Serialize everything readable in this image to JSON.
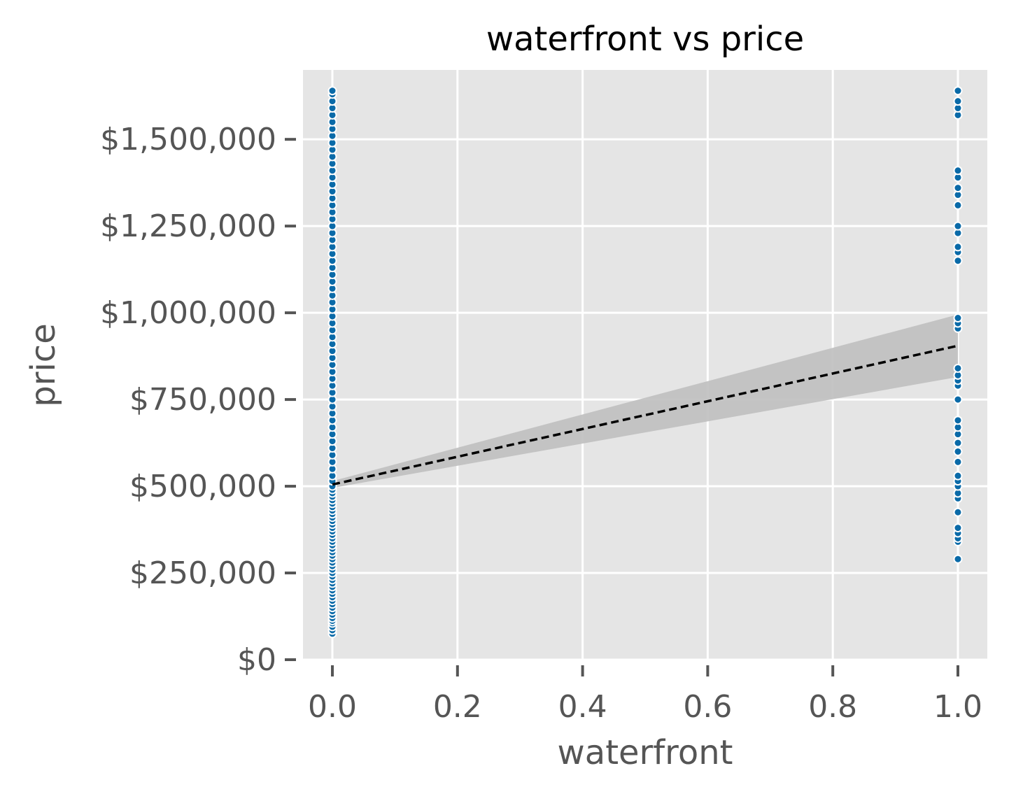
{
  "chart_data": {
    "type": "scatter",
    "title": "waterfront vs price",
    "xlabel": "waterfront",
    "ylabel": "price",
    "xlim": [
      -0.047,
      1.047
    ],
    "ylim": [
      0,
      1700000
    ],
    "xticks": [
      0.0,
      0.2,
      0.4,
      0.6,
      0.8,
      1.0
    ],
    "xtick_labels": [
      "0.0",
      "0.2",
      "0.4",
      "0.6",
      "0.8",
      "1.0"
    ],
    "yticks": [
      0,
      250000,
      500000,
      750000,
      1000000,
      1250000,
      1500000
    ],
    "ytick_labels": [
      "$0",
      "$250,000",
      "$500,000",
      "$750,000",
      "$1,000,000",
      "$1,250,000",
      "$1,500,000"
    ],
    "grid": true,
    "background": "#e5e5e5",
    "point_color": "#0a6aa8",
    "point_edge_color": "#ffffff",
    "series": [
      {
        "x_value": 0,
        "y": [
          75000,
          85000,
          95000,
          105000,
          112000,
          120000,
          130000,
          140000,
          150000,
          160000,
          170000,
          180000,
          190000,
          200000,
          210000,
          220000,
          230000,
          240000,
          250000,
          260000,
          270000,
          280000,
          290000,
          300000,
          310000,
          320000,
          330000,
          340000,
          350000,
          360000,
          370000,
          380000,
          390000,
          400000,
          410000,
          420000,
          430000,
          440000,
          450000,
          460000,
          470000,
          480000,
          490000,
          500000,
          515000,
          530000,
          550000,
          570000,
          590000,
          610000,
          630000,
          650000,
          670000,
          690000,
          710000,
          730000,
          750000,
          770000,
          790000,
          810000,
          830000,
          850000,
          870000,
          890000,
          910000,
          930000,
          950000,
          970000,
          990000,
          1010000,
          1030000,
          1050000,
          1070000,
          1090000,
          1110000,
          1130000,
          1150000,
          1170000,
          1190000,
          1210000,
          1230000,
          1250000,
          1270000,
          1290000,
          1310000,
          1330000,
          1350000,
          1370000,
          1390000,
          1410000,
          1430000,
          1450000,
          1470000,
          1490000,
          1510000,
          1530000,
          1550000,
          1570000,
          1590000,
          1610000,
          1630000,
          1640000
        ]
      },
      {
        "x_value": 1,
        "y": [
          290000,
          340000,
          350000,
          365000,
          380000,
          425000,
          465000,
          480000,
          500000,
          515000,
          530000,
          570000,
          600000,
          625000,
          650000,
          670000,
          690000,
          750000,
          790000,
          805000,
          820000,
          840000,
          955000,
          970000,
          985000,
          1150000,
          1175000,
          1190000,
          1230000,
          1250000,
          1310000,
          1340000,
          1360000,
          1390000,
          1410000,
          1570000,
          1590000,
          1610000,
          1640000
        ]
      }
    ],
    "regression": {
      "style": "dashed",
      "color": "#000000",
      "x": [
        0,
        1
      ],
      "y": [
        505000,
        905000
      ],
      "ci_lower": [
        495000,
        815000
      ],
      "ci_upper": [
        515000,
        995000
      ],
      "ci_color": "#bfbfbf"
    }
  }
}
